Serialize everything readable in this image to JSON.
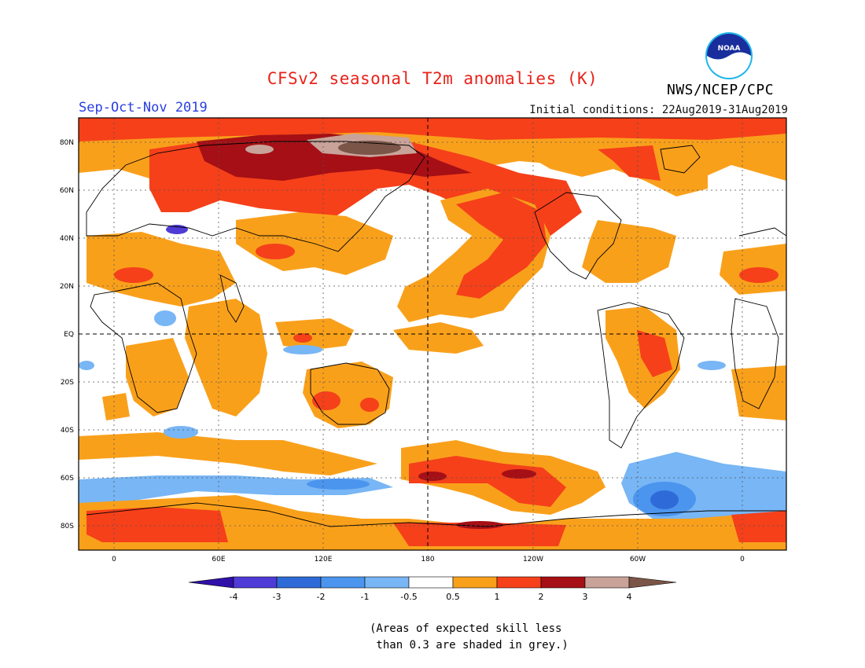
{
  "header": {
    "title": "CFSv2 seasonal T2m anomalies (K)",
    "season": "Sep-Oct-Nov 2019",
    "initial_conditions": "Initial conditions: 22Aug2019-31Aug2019",
    "agency": "NWS/NCEP/CPC",
    "logo_text": "NOAA"
  },
  "map": {
    "lat_labels": [
      "80N",
      "60N",
      "40N",
      "20N",
      "EQ",
      "20S",
      "40S",
      "60S",
      "80S"
    ],
    "lon_labels": [
      "0",
      "60E",
      "120E",
      "180",
      "120W",
      "60W",
      "0"
    ]
  },
  "legend": {
    "tick_labels": [
      "-4",
      "-3",
      "-2",
      "-1",
      "-0.5",
      "0.5",
      "1",
      "2",
      "3",
      "4"
    ],
    "colors": [
      "#3010a8",
      "#4f3bd6",
      "#2f6bd8",
      "#4b95ee",
      "#78b6f5",
      "#ffffff",
      "#f9a01b",
      "#f5401a",
      "#a50f15",
      "#c9a39a",
      "#7b5547"
    ]
  },
  "footnote": "(Areas of expected skill less\n than 0.3 are shaded in grey.)"
}
